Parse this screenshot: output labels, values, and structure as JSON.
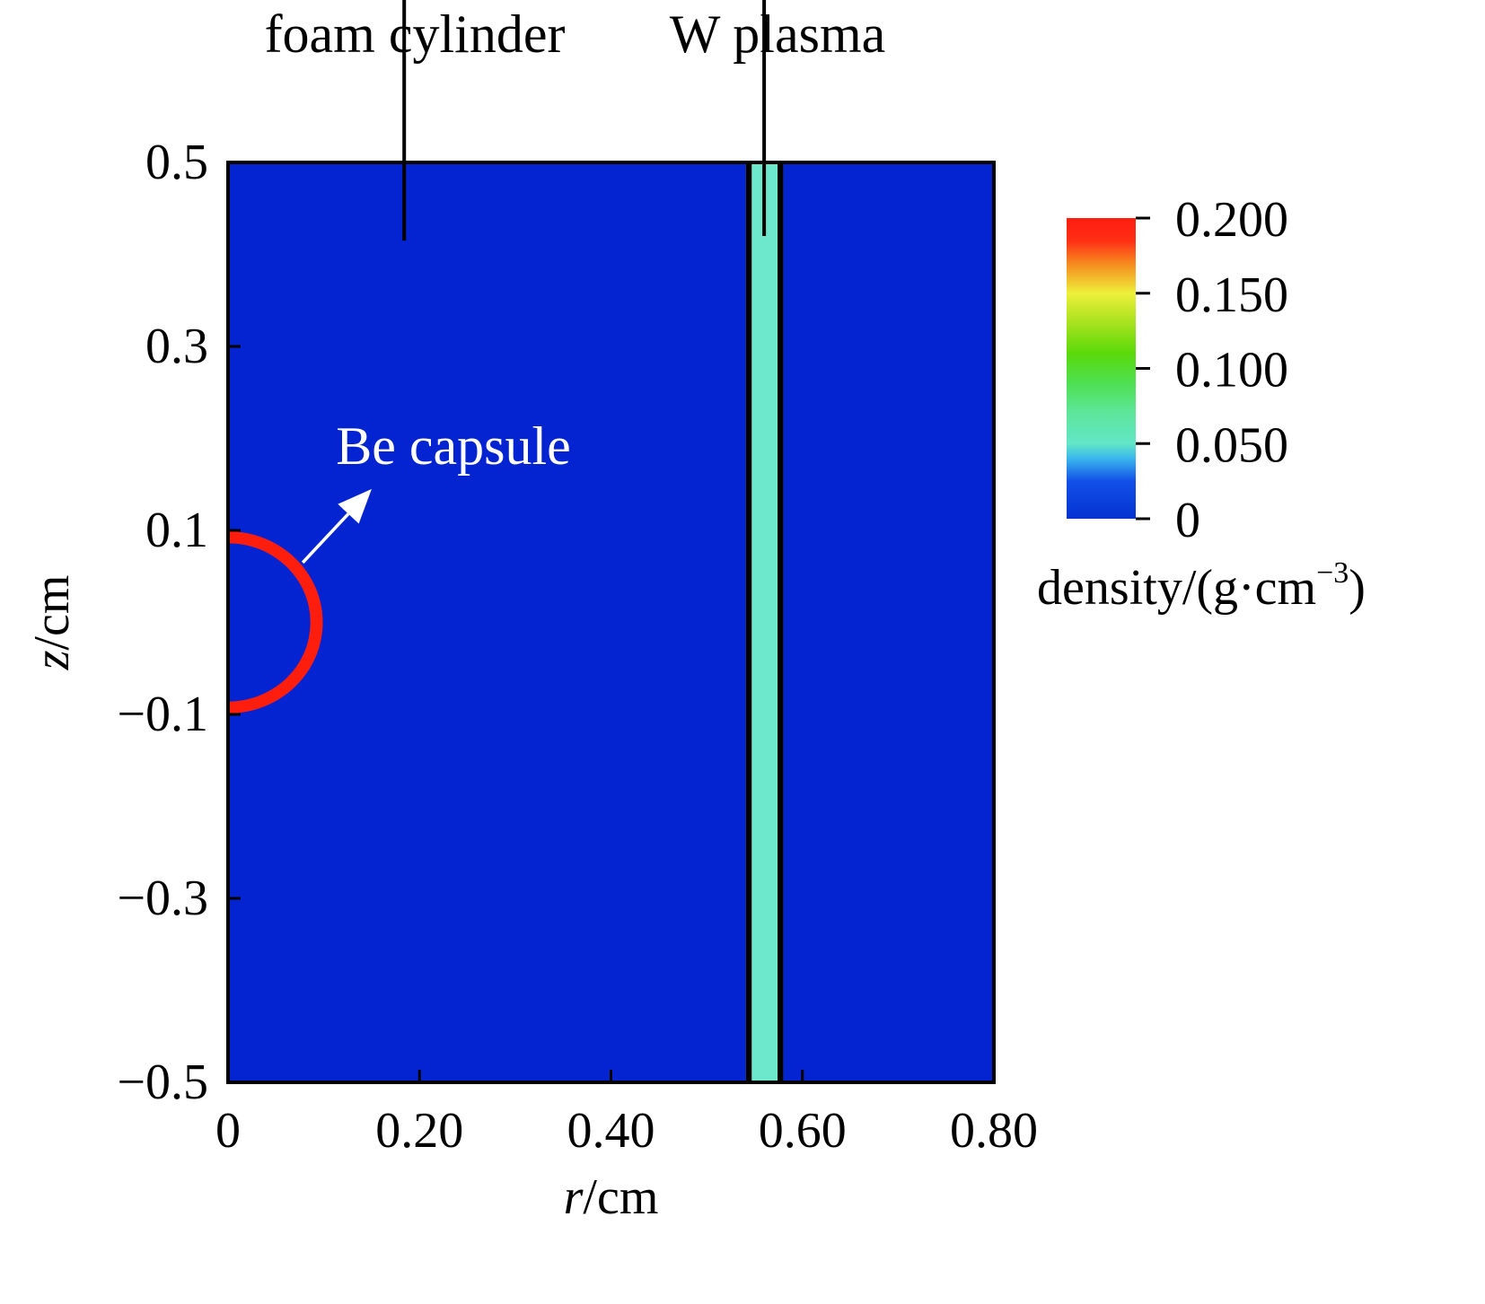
{
  "chart_data": {
    "type": "heatmap",
    "title": "",
    "xlabel": {
      "var": "r",
      "unit": "/cm"
    },
    "ylabel": {
      "var": "z",
      "unit": "/cm"
    },
    "xlim": [
      0,
      0.8
    ],
    "ylim": [
      -0.5,
      0.5
    ],
    "x_ticks": [
      {
        "value": 0,
        "label": "0"
      },
      {
        "value": 0.2,
        "label": "0.20"
      },
      {
        "value": 0.4,
        "label": "0.40"
      },
      {
        "value": 0.6,
        "label": "0.60"
      },
      {
        "value": 0.8,
        "label": "0.80"
      }
    ],
    "y_ticks": [
      {
        "value": 0.5,
        "label": "0.5"
      },
      {
        "value": 0.3,
        "label": "0.3"
      },
      {
        "value": 0.1,
        "label": "0.1"
      },
      {
        "value": -0.1,
        "label": "−0.1"
      },
      {
        "value": -0.3,
        "label": "−0.3"
      },
      {
        "value": -0.5,
        "label": "−0.5"
      }
    ],
    "background_density": 0.0,
    "regions": [
      {
        "name": "foam cylinder",
        "density": 0.0,
        "r_range": [
          0,
          0.8
        ],
        "z_range": [
          -0.5,
          0.5
        ]
      },
      {
        "name": "W plasma",
        "density": 0.045,
        "r_range": [
          0.541,
          0.58
        ],
        "z_range": [
          -0.5,
          0.5
        ],
        "boundary_width_r": 0.006
      },
      {
        "name": "Be capsule",
        "density": 0.2,
        "shape": "half-ring",
        "outer_radius": 0.099,
        "inner_radius": 0.086,
        "center": [
          0,
          0
        ]
      }
    ],
    "annotations": [
      {
        "text": "foam cylinder",
        "arrow_from": [
          0.184,
          0.415
        ],
        "arrow_to": [
          0.184,
          0.81
        ],
        "color": "black"
      },
      {
        "text": "W plasma",
        "arrow_from": [
          0.56,
          0.42
        ],
        "arrow_to": [
          0.56,
          0.82
        ],
        "color": "black"
      },
      {
        "text": "Be capsule",
        "arrow_from": [
          0.078,
          0.065
        ],
        "arrow_to": [
          0.15,
          0.145
        ],
        "color": "white"
      }
    ],
    "colorbar": {
      "label": "density/(g·cm",
      "label_sup": "−3",
      "label_close": ")",
      "range": [
        0,
        0.2
      ],
      "ticks": [
        {
          "value": 0.2,
          "label": "0.200"
        },
        {
          "value": 0.15,
          "label": "0.150"
        },
        {
          "value": 0.1,
          "label": "0.100"
        },
        {
          "value": 0.05,
          "label": "0.050"
        },
        {
          "value": 0,
          "label": "0"
        }
      ],
      "colors": [
        {
          "value": 0.0,
          "color": "#0432d0"
        },
        {
          "value": 0.025,
          "color": "#1250e8"
        },
        {
          "value": 0.04,
          "color": "#3ab6ee"
        },
        {
          "value": 0.05,
          "color": "#62e6c6"
        },
        {
          "value": 0.07,
          "color": "#5ee69c"
        },
        {
          "value": 0.09,
          "color": "#4ee052"
        },
        {
          "value": 0.11,
          "color": "#5ad90a"
        },
        {
          "value": 0.13,
          "color": "#a6e21e"
        },
        {
          "value": 0.15,
          "color": "#eef03a"
        },
        {
          "value": 0.17,
          "color": "#f6881e"
        },
        {
          "value": 0.185,
          "color": "#ff2e14"
        },
        {
          "value": 0.2,
          "color": "#ff1c10"
        }
      ]
    },
    "colors": {
      "background": "#0424d2",
      "w_plasma": "#6ee8cc",
      "be_capsule": "#ff1e0e",
      "outline": "#000000"
    }
  }
}
